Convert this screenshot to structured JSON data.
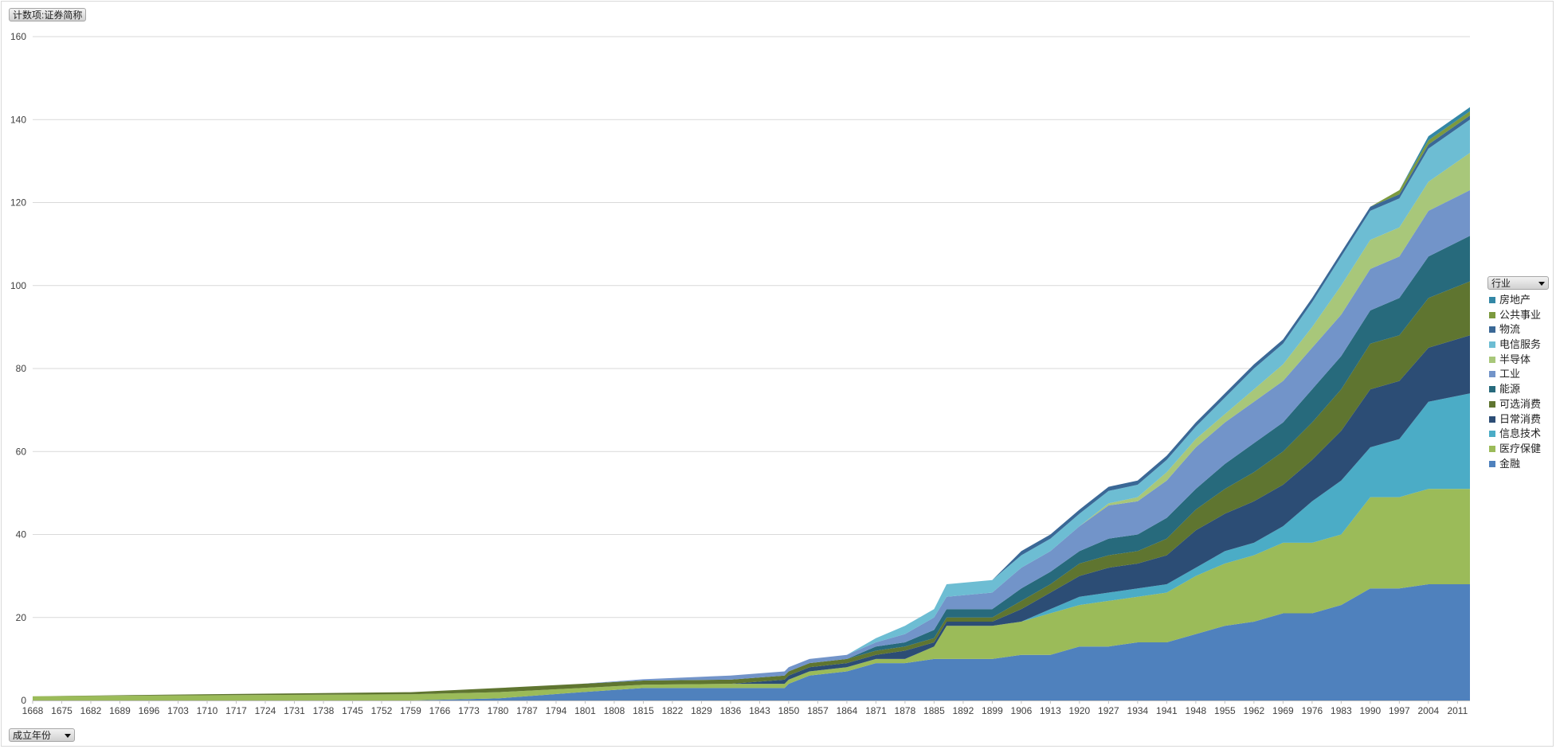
{
  "values_field_label": "计数项:证券简称",
  "axis_field_label": "成立年份",
  "legend_field_label": "行业",
  "chart_data": {
    "type": "area",
    "stacked": true,
    "ylim": [
      0,
      160
    ],
    "yticks": [
      0,
      20,
      40,
      60,
      80,
      100,
      120,
      140,
      160
    ],
    "xlim": [
      1668,
      2014
    ],
    "xticks": [
      1668,
      1675,
      1682,
      1689,
      1696,
      1703,
      1710,
      1717,
      1724,
      1731,
      1738,
      1745,
      1752,
      1759,
      1766,
      1773,
      1780,
      1787,
      1794,
      1801,
      1808,
      1815,
      1822,
      1829,
      1836,
      1843,
      1850,
      1857,
      1864,
      1871,
      1878,
      1885,
      1892,
      1899,
      1906,
      1913,
      1920,
      1927,
      1934,
      1941,
      1948,
      1955,
      1962,
      1969,
      1976,
      1983,
      1990,
      1997,
      2004,
      2011
    ],
    "grid": true,
    "legend_position": "right",
    "x": [
      1668,
      1700,
      1759,
      1780,
      1800,
      1815,
      1836,
      1849,
      1850,
      1855,
      1864,
      1871,
      1878,
      1885,
      1888,
      1899,
      1906,
      1913,
      1920,
      1927,
      1934,
      1941,
      1948,
      1955,
      1962,
      1969,
      1976,
      1983,
      1990,
      1997,
      2004,
      2014
    ],
    "series": [
      {
        "name": "金融",
        "color": "#4F81BD",
        "values": [
          0,
          0,
          0,
          0.5,
          2,
          3,
          3,
          3,
          4,
          6,
          7,
          9,
          9,
          10,
          10,
          10,
          11,
          11,
          13,
          13,
          14,
          14,
          16,
          18,
          19,
          21,
          21,
          23,
          27,
          27,
          28,
          28
        ]
      },
      {
        "name": "医疗保健",
        "color": "#9BBB59",
        "values": [
          1,
          1.2,
          1.5,
          1.5,
          1,
          0.8,
          1,
          1,
          1,
          1,
          1,
          1,
          1,
          3,
          8,
          8,
          8,
          10,
          10,
          11,
          11,
          12,
          14,
          15,
          16,
          17,
          17,
          17,
          22,
          22,
          23,
          23
        ]
      },
      {
        "name": "信息技术",
        "color": "#4BACC6",
        "values": [
          0,
          0,
          0,
          0,
          0,
          0,
          0,
          0,
          0,
          0,
          0,
          0,
          0,
          0,
          0,
          0,
          0,
          1,
          2,
          2,
          2,
          2,
          2,
          3,
          3,
          4,
          10,
          13,
          12,
          14,
          21,
          23
        ]
      },
      {
        "name": "日常消费",
        "color": "#2C4D75",
        "values": [
          0,
          0,
          0,
          0,
          0,
          0,
          0,
          1,
          1,
          1,
          1,
          1,
          2,
          1,
          1,
          1,
          3,
          4,
          5,
          6,
          6,
          7,
          9,
          9,
          10,
          10,
          10,
          12,
          14,
          14,
          13,
          14
        ]
      },
      {
        "name": "可选消费",
        "color": "#5F7530",
        "values": [
          0,
          0.2,
          0.5,
          1,
          1,
          1,
          1,
          1,
          1,
          1,
          1,
          1,
          1,
          1,
          1,
          1,
          2,
          2,
          3,
          3,
          3,
          4,
          5,
          6,
          7,
          8,
          9,
          10,
          11,
          11,
          12,
          13
        ]
      },
      {
        "name": "能源",
        "color": "#276A7C",
        "values": [
          0,
          0,
          0,
          0,
          0,
          0,
          0,
          0,
          0,
          0,
          0,
          1,
          1,
          2,
          2,
          2,
          3,
          3,
          3,
          4,
          4,
          5,
          5,
          6,
          7,
          7,
          8,
          8,
          8,
          9,
          10,
          11
        ]
      },
      {
        "name": "工业",
        "color": "#7294C9",
        "values": [
          0,
          0,
          0,
          0,
          0,
          0.3,
          1,
          1,
          1,
          1,
          1,
          1,
          2,
          3,
          3,
          4,
          5,
          5,
          6,
          8,
          8,
          9,
          10,
          10,
          10,
          10,
          10,
          10,
          10,
          10,
          11,
          11
        ]
      },
      {
        "name": "半导体",
        "color": "#A8C77A",
        "values": [
          0,
          0,
          0,
          0,
          0,
          0,
          0,
          0,
          0,
          0,
          0,
          0,
          0,
          0,
          0,
          0,
          0,
          0,
          0,
          0.5,
          1,
          2,
          2,
          2,
          3,
          4,
          5,
          7,
          7,
          7,
          7,
          9
        ]
      },
      {
        "name": "电信服务",
        "color": "#6DBDD3",
        "values": [
          0,
          0,
          0,
          0,
          0,
          0,
          0,
          0,
          0,
          0,
          0,
          1,
          2,
          2,
          3,
          3,
          3,
          3,
          3,
          3,
          3,
          3,
          3,
          4,
          5,
          5,
          6,
          7,
          7,
          7,
          8,
          8
        ]
      },
      {
        "name": "物流",
        "color": "#3A6896",
        "values": [
          0,
          0,
          0,
          0,
          0,
          0,
          0,
          0,
          0,
          0,
          0,
          0,
          0,
          0,
          0,
          0,
          1,
          1,
          1,
          1,
          1,
          1,
          1,
          1,
          1,
          1,
          1,
          1,
          1,
          1,
          1,
          1
        ]
      },
      {
        "name": "公共事业",
        "color": "#7C9A3E",
        "values": [
          0,
          0,
          0,
          0,
          0,
          0,
          0,
          0,
          0,
          0,
          0,
          0,
          0,
          0,
          0,
          0,
          0,
          0,
          0,
          0,
          0,
          0,
          0,
          0,
          0,
          0,
          0,
          0,
          0,
          1,
          1,
          1
        ]
      },
      {
        "name": "房地产",
        "color": "#3387A6",
        "values": [
          0,
          0,
          0,
          0,
          0,
          0,
          0,
          0,
          0,
          0,
          0,
          0,
          0,
          0,
          0,
          0,
          0,
          0,
          0,
          0,
          0,
          0,
          0,
          0,
          0,
          0,
          0,
          0,
          0,
          0,
          1,
          1
        ]
      }
    ]
  }
}
